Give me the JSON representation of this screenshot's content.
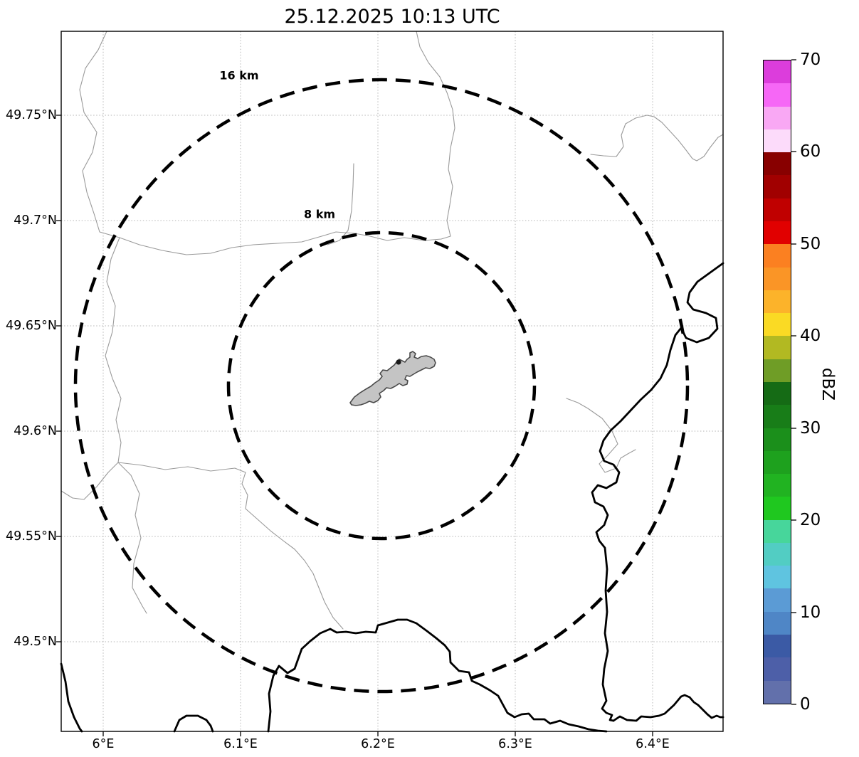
{
  "title": "25.12.2025 10:13 UTC",
  "range_rings": {
    "outer_label": "16 km",
    "inner_label": "8 km"
  },
  "axes": {
    "x_ticks": [
      "6°E",
      "6.1°E",
      "6.2°E",
      "6.3°E",
      "6.4°E"
    ],
    "y_ticks": [
      "49.75°N",
      "49.7°N",
      "49.65°N",
      "49.6°N",
      "49.55°N",
      "49.5°N"
    ]
  },
  "colorbar": {
    "label": "dBZ",
    "tick_labels": [
      "70",
      "60",
      "50",
      "40",
      "30",
      "20",
      "10",
      "0"
    ],
    "segment_colors_top_to_bottom": [
      "#dc3ddc",
      "#f667f6",
      "#f9a8f4",
      "#fcdbfa",
      "#880000",
      "#a10000",
      "#c00000",
      "#e10000",
      "#fb8021",
      "#fa9526",
      "#fcb32a",
      "#fada24",
      "#b2b922",
      "#6f9d26",
      "#156b15",
      "#187d18",
      "#1b8f1b",
      "#1ea11e",
      "#21b321",
      "#1fc81f",
      "#47d69b",
      "#52cdc3",
      "#5fc4e0",
      "#5b9bd5",
      "#4f86c6",
      "#3b5aa5",
      "#4d5fa8",
      "#6270ab"
    ]
  },
  "chart_data": {
    "type": "map",
    "title": "25.12.2025 10:13 UTC",
    "projection": "lat/lon (PlateCarree)",
    "x_axis": {
      "tick_values": [
        6.0,
        6.1,
        6.2,
        6.3,
        6.4
      ],
      "unit": "°E",
      "approx_range": [
        5.97,
        6.45
      ]
    },
    "y_axis": {
      "tick_values": [
        49.75,
        49.7,
        49.65,
        49.6,
        49.55,
        49.5
      ],
      "unit": "°N",
      "approx_range": [
        49.46,
        49.79
      ]
    },
    "grid": true,
    "range_rings_km": [
      8,
      16
    ],
    "ring_center_approx": {
      "lon": 6.2,
      "lat": 49.62
    },
    "colorbar_scale": {
      "label": "dBZ",
      "min": 0,
      "max": 70,
      "tick_step": 10,
      "segment_step": 2.5
    },
    "reflectivity_cells_visible": 0
  }
}
